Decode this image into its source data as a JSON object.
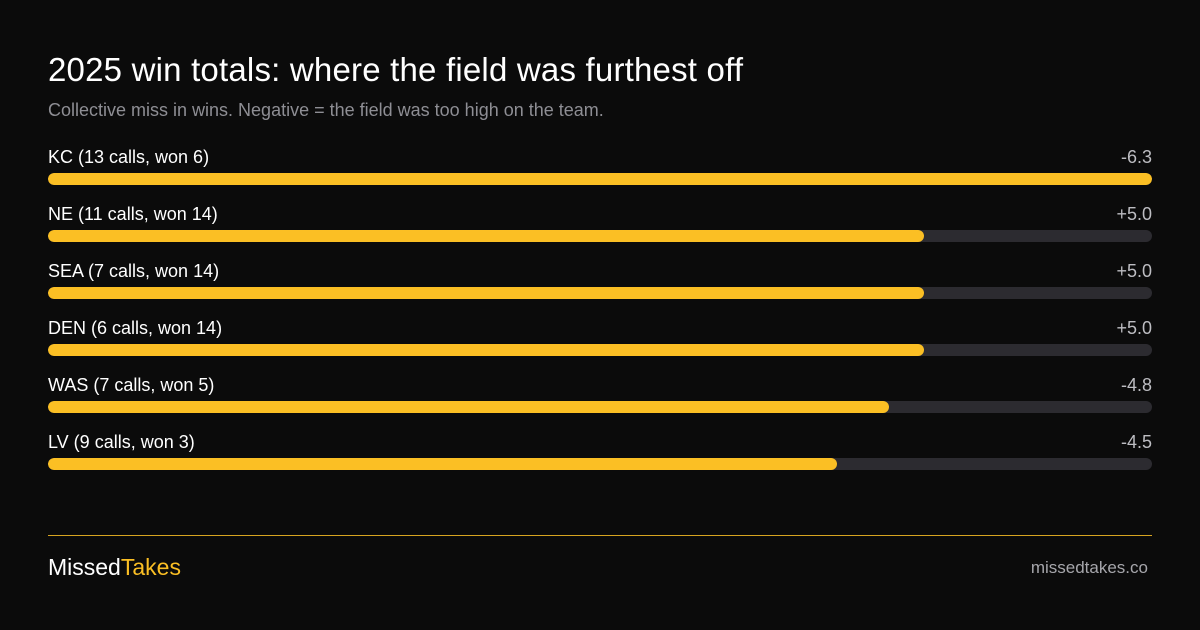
{
  "header": {
    "title": "2025 win totals: where the field was furthest off",
    "subtitle": "Collective miss in wins. Negative = the field was too high on the team."
  },
  "colors": {
    "background": "#0b0b0b",
    "bar_fill": "#fbbf24",
    "bar_track": "#2c2b30",
    "subtitle_text": "#8e8e94",
    "accent": "#fbbf24"
  },
  "chart_data": {
    "type": "bar",
    "orientation": "horizontal",
    "categories": [
      "KC (13 calls, won 6)",
      "NE (11 calls, won 14)",
      "SEA (7 calls, won 14)",
      "DEN (6 calls, won 14)",
      "WAS  (7 calls, won 5)",
      "LV  (9 calls, won 3)"
    ],
    "values": [
      -6.3,
      5.0,
      5.0,
      5.0,
      -4.8,
      -4.5
    ],
    "value_labels": [
      "-6.3",
      "+5.0",
      "+5.0",
      "+5.0",
      "-4.8",
      "-4.5"
    ],
    "bar_scale": "absolute value",
    "xlim": [
      0,
      6.3
    ],
    "grid": false,
    "legend": "none"
  },
  "footer": {
    "brand_part1": "Missed",
    "brand_part2": "Takes",
    "site": "missedtakes.co"
  }
}
